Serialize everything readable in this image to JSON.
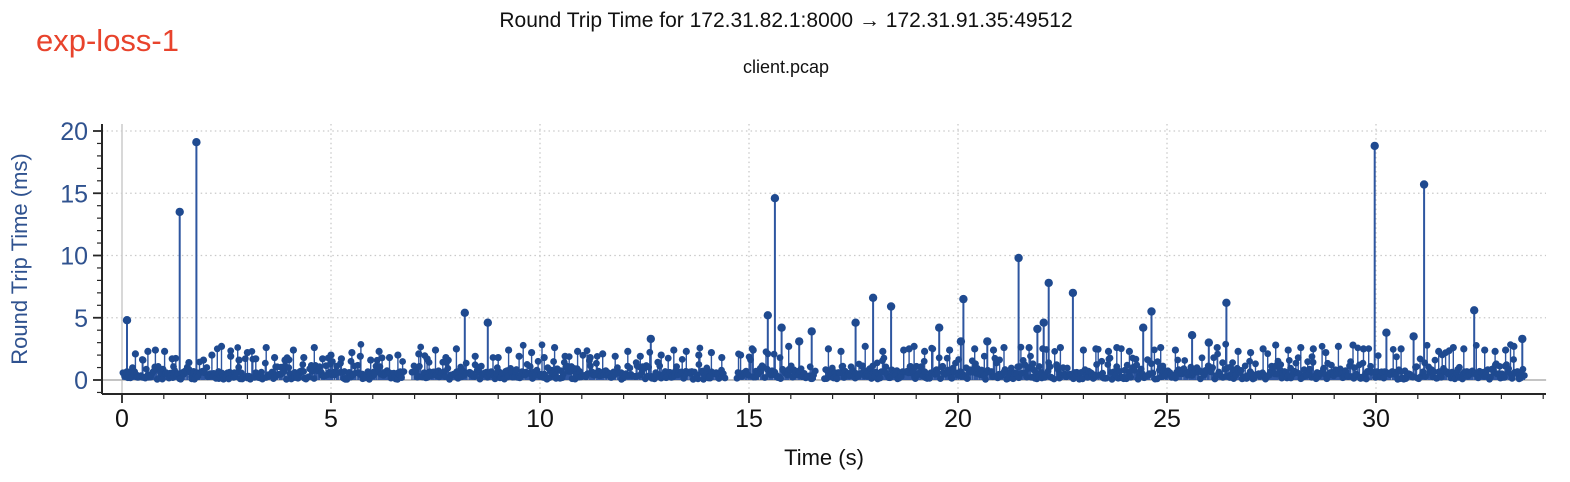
{
  "chart_data": {
    "type": "stem",
    "title": "Round Trip Time for 172.31.82.1:8000 → 172.31.91.35:49512",
    "subtitle": "client.pcap",
    "annotation": "exp-loss-1",
    "xlabel": "Time (s)",
    "ylabel": "Round Trip Time (ms)",
    "xlim": [
      -0.48,
      34.07
    ],
    "ylim": [
      -1.12,
      20.56
    ],
    "x_ticks_major": [
      0,
      5,
      10,
      15,
      20,
      25,
      30
    ],
    "x_tick_labels": [
      "0",
      "5",
      "10",
      "15",
      "20",
      "25",
      "30"
    ],
    "x_minor_tick_step": 1,
    "x_minor_tick_range": [
      1,
      34
    ],
    "y_ticks_major": [
      0,
      5,
      10,
      15,
      20
    ],
    "y_tick_labels": [
      "0",
      "5",
      "10",
      "15",
      "20"
    ],
    "y_minor_tick_step": 1,
    "y_minor_tick_range": [
      -1,
      20
    ],
    "grid": {
      "style": "dotted",
      "h_lines": [
        5,
        10,
        15,
        20
      ],
      "v_lines": [
        5,
        10,
        15,
        20,
        25,
        30
      ],
      "zero_vline_solid": true
    },
    "legend": null,
    "colors": {
      "annotation": "#e8432c",
      "stem": "#2e56a0",
      "marker": "#1f4a90",
      "grid": "#c9c9c9",
      "zero_vline": "#cccccc",
      "stem_baseline": "#b0b0b0",
      "axis": "#262626",
      "x_text": "#111111",
      "y_text": "#2f528f",
      "title_text": "#111111"
    },
    "prominent_spikes": [
      [
        0.12,
        4.8
      ],
      [
        0.32,
        2.1
      ],
      [
        0.5,
        1.6
      ],
      [
        0.62,
        2.3
      ],
      [
        0.8,
        2.4
      ],
      [
        1.02,
        2.3
      ],
      [
        1.2,
        1.7
      ],
      [
        1.38,
        13.5
      ],
      [
        1.6,
        1.4
      ],
      [
        1.78,
        19.1
      ],
      [
        1.95,
        1.6
      ],
      [
        2.15,
        2.0
      ],
      [
        2.38,
        2.7
      ],
      [
        2.6,
        1.9
      ],
      [
        2.8,
        1.6
      ],
      [
        3.0,
        2.2
      ],
      [
        3.2,
        1.7
      ],
      [
        3.45,
        2.6
      ],
      [
        3.65,
        1.8
      ],
      [
        3.9,
        1.6
      ],
      [
        4.1,
        2.4
      ],
      [
        4.35,
        1.8
      ],
      [
        4.6,
        2.6
      ],
      [
        4.8,
        1.7
      ],
      [
        5.0,
        2.0
      ],
      [
        5.25,
        1.7
      ],
      [
        5.5,
        2.2
      ],
      [
        5.7,
        1.9
      ],
      [
        5.95,
        1.6
      ],
      [
        6.15,
        2.3
      ],
      [
        6.4,
        1.8
      ],
      [
        6.6,
        2.0
      ],
      [
        7.1,
        2.1
      ],
      [
        7.3,
        1.7
      ],
      [
        7.5,
        2.4
      ],
      [
        7.75,
        1.8
      ],
      [
        8.0,
        2.5
      ],
      [
        8.2,
        5.4
      ],
      [
        8.45,
        1.9
      ],
      [
        8.75,
        4.6
      ],
      [
        9.0,
        1.8
      ],
      [
        9.25,
        2.4
      ],
      [
        9.5,
        1.9
      ],
      [
        9.8,
        2.2
      ],
      [
        10.1,
        1.8
      ],
      [
        10.35,
        2.6
      ],
      [
        10.6,
        1.9
      ],
      [
        10.9,
        2.3
      ],
      [
        11.2,
        1.8
      ],
      [
        11.5,
        2.1
      ],
      [
        11.8,
        1.9
      ],
      [
        12.1,
        2.3
      ],
      [
        12.4,
        1.9
      ],
      [
        12.65,
        3.3
      ],
      [
        12.9,
        2.0
      ],
      [
        13.2,
        2.4
      ],
      [
        13.5,
        2.3
      ],
      [
        13.8,
        2.0
      ],
      [
        14.1,
        2.2
      ],
      [
        14.35,
        1.8
      ],
      [
        14.8,
        2.0
      ],
      [
        15.1,
        2.4
      ],
      [
        15.45,
        5.2
      ],
      [
        15.62,
        14.6
      ],
      [
        15.78,
        4.2
      ],
      [
        15.95,
        2.7
      ],
      [
        16.2,
        3.1
      ],
      [
        16.5,
        3.9
      ],
      [
        16.9,
        2.5
      ],
      [
        17.2,
        2.3
      ],
      [
        17.55,
        4.6
      ],
      [
        17.78,
        2.7
      ],
      [
        17.97,
        6.6
      ],
      [
        18.2,
        2.3
      ],
      [
        18.4,
        5.9
      ],
      [
        18.7,
        2.4
      ],
      [
        18.83,
        2.5
      ],
      [
        18.95,
        2.7
      ],
      [
        19.2,
        2.3
      ],
      [
        19.55,
        4.2
      ],
      [
        19.8,
        2.4
      ],
      [
        20.07,
        3.1
      ],
      [
        20.13,
        6.5
      ],
      [
        20.4,
        2.5
      ],
      [
        20.7,
        3.1
      ],
      [
        20.85,
        2.4
      ],
      [
        21.1,
        2.6
      ],
      [
        21.45,
        9.8
      ],
      [
        21.7,
        2.6
      ],
      [
        21.9,
        4.1
      ],
      [
        22.05,
        4.6
      ],
      [
        22.17,
        7.8
      ],
      [
        22.45,
        2.6
      ],
      [
        22.75,
        7.0
      ],
      [
        23.0,
        2.4
      ],
      [
        23.3,
        2.5
      ],
      [
        23.6,
        2.3
      ],
      [
        23.8,
        2.6
      ],
      [
        24.1,
        2.3
      ],
      [
        24.43,
        4.2
      ],
      [
        24.63,
        5.5
      ],
      [
        24.85,
        2.6
      ],
      [
        25.2,
        2.4
      ],
      [
        25.6,
        3.6
      ],
      [
        26.0,
        3.0
      ],
      [
        26.2,
        2.6
      ],
      [
        26.42,
        6.2
      ],
      [
        26.7,
        2.3
      ],
      [
        27.0,
        2.2
      ],
      [
        27.3,
        2.5
      ],
      [
        27.6,
        2.8
      ],
      [
        27.9,
        2.4
      ],
      [
        28.2,
        2.6
      ],
      [
        28.5,
        2.5
      ],
      [
        28.8,
        2.2
      ],
      [
        29.1,
        2.7
      ],
      [
        29.45,
        2.8
      ],
      [
        29.7,
        2.5
      ],
      [
        29.97,
        18.8
      ],
      [
        30.25,
        3.8
      ],
      [
        30.6,
        2.5
      ],
      [
        30.9,
        3.5
      ],
      [
        31.15,
        15.7
      ],
      [
        31.5,
        2.3
      ],
      [
        31.85,
        2.6
      ],
      [
        32.1,
        2.5
      ],
      [
        32.35,
        5.6
      ],
      [
        32.6,
        2.4
      ],
      [
        32.85,
        2.3
      ],
      [
        33.1,
        2.4
      ],
      [
        33.3,
        2.7
      ],
      [
        33.5,
        3.3
      ]
    ],
    "baseline_points": {
      "seed": 1337,
      "x_start": 0.03,
      "x_end": 33.55,
      "step": 0.028,
      "jitter": 0.012,
      "gaps": [
        [
          6.78,
          6.92
        ],
        [
          14.45,
          14.68
        ],
        [
          16.6,
          16.8
        ]
      ],
      "distribution": [
        {
          "min": 0.05,
          "max": 0.7,
          "weight": 0.62
        },
        {
          "min": 0.55,
          "max": 1.15,
          "weight": 0.25
        },
        {
          "min": 1.1,
          "max": 1.9,
          "weight": 0.1
        },
        {
          "min": 1.9,
          "max": 2.9,
          "weight": 0.03
        }
      ]
    }
  }
}
